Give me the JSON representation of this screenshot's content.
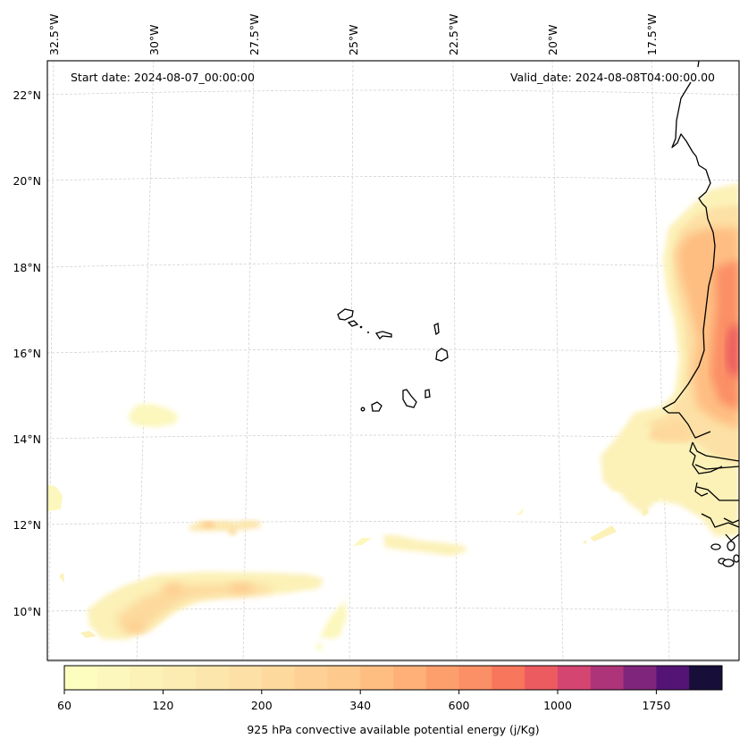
{
  "chart_data": {
    "type": "heatmap",
    "title": "",
    "annotations": {
      "start_date": "Start date: 2024-08-07_00:00:00",
      "valid_date": "Valid_date: 2024-08-08T04:00:00.00"
    },
    "longitude_ticks": [
      "32.5°W",
      "30°W",
      "27.5°W",
      "25°W",
      "22.5°W",
      "20°W",
      "17.5°W"
    ],
    "longitude_values": [
      -32.5,
      -30,
      -27.5,
      -25,
      -22.5,
      -20,
      -17.5
    ],
    "latitude_ticks": [
      "22°N",
      "20°N",
      "18°N",
      "16°N",
      "14°N",
      "12°N",
      "10°N"
    ],
    "latitude_values": [
      22,
      20,
      18,
      16,
      14,
      12,
      10
    ],
    "extent": {
      "lon_min": -32.6,
      "lon_max": -15.3,
      "lat_min": 8.9,
      "lat_max": 22.8
    },
    "grid": true,
    "colorbar": {
      "label": "925 hPa convective available potential energy (j/Kg)",
      "orientation": "horizontal",
      "placement": "bottom",
      "tick_labels": [
        "60",
        "120",
        "200",
        "340",
        "600",
        "1000",
        "1750"
      ],
      "tick_bin_index": [
        0,
        3,
        6,
        9,
        12,
        15,
        18
      ],
      "colormap": "magma_r",
      "bin_count": 20,
      "colors": [
        "#fcfdbf",
        "#fcf7bc",
        "#fcf1b7",
        "#fcecb2",
        "#fce6ac",
        "#fde0a5",
        "#fdd99d",
        "#fed095",
        "#fec98c",
        "#febe82",
        "#feb078",
        "#fd9f6c",
        "#fb8f65",
        "#f7765c",
        "#ec5b5f",
        "#d54571",
        "#ad3479",
        "#80257c",
        "#541475",
        "#170f3a"
      ]
    },
    "features": {
      "coastline": "West Africa (Mauritania, Senegal, Gambia, Guinea-Bissau)",
      "islands": "Cape Verde archipelago"
    },
    "field_regions": [
      {
        "name": "African coast maximum",
        "lon": [
          -17.0,
          -15.3
        ],
        "lat": [
          13.0,
          19.5
        ],
        "max_level": 1000
      },
      {
        "name": "Senegal offshore plume",
        "lon": [
          -19.0,
          -16.0
        ],
        "lat": [
          11.0,
          14.7
        ],
        "max_level": 300
      },
      {
        "name": "Southern band",
        "lon": [
          -31.5,
          -26.5
        ],
        "lat": [
          9.5,
          10.9
        ],
        "max_level": 280
      },
      {
        "name": "Northern streak",
        "lon": [
          -28.5,
          -27.0
        ],
        "lat": [
          11.8,
          12.1
        ],
        "max_level": 300
      },
      {
        "name": "Isolated cell west",
        "lon": [
          -30.2,
          -28.8
        ],
        "lat": [
          14.3,
          14.8
        ],
        "max_level": 100
      },
      {
        "name": "Mid-ocean streak",
        "lon": [
          -23.8,
          -22.2
        ],
        "lat": [
          11.3,
          11.6
        ],
        "max_level": 100
      },
      {
        "name": "Diagonal streak",
        "lon": [
          -25.3,
          -24.7
        ],
        "lat": [
          9.3,
          10.2
        ],
        "max_level": 80
      },
      {
        "name": "West edge",
        "lon": [
          -32.6,
          -32.2
        ],
        "lat": [
          12.3,
          12.9
        ],
        "max_level": 80
      }
    ]
  }
}
